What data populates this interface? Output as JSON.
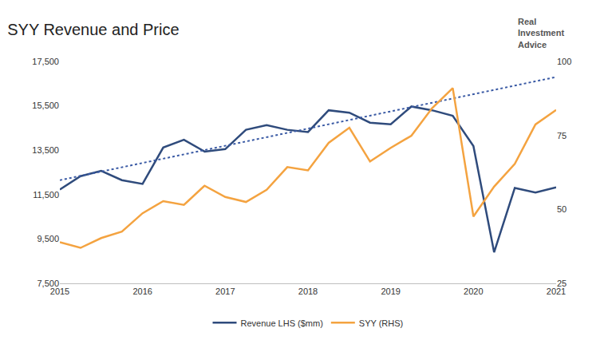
{
  "chart_data": {
    "type": "line",
    "title": "SYY Revenue and Price",
    "logo": [
      "Real",
      "Investment",
      "Advice"
    ],
    "x": [
      2015,
      2015.25,
      2015.5,
      2015.75,
      2016,
      2016.25,
      2016.5,
      2016.75,
      2017,
      2017.25,
      2017.5,
      2017.75,
      2018,
      2018.25,
      2018.5,
      2018.75,
      2019,
      2019.25,
      2019.5,
      2019.75,
      2020,
      2020.25,
      2020.5,
      2020.75,
      2021
    ],
    "series": [
      {
        "name": "Revenue LHS ($mm)",
        "color": "#2f4b7c",
        "axis": "y",
        "values": [
          11730,
          12330,
          12570,
          12150,
          11980,
          13620,
          13970,
          13440,
          13550,
          14420,
          14630,
          14420,
          14320,
          15300,
          15190,
          14740,
          14670,
          15470,
          15300,
          15050,
          13690,
          8900,
          11800,
          11590,
          11830
        ]
      },
      {
        "name": "SYY (RHS)",
        "color": "#f4a340",
        "axis": "y2",
        "values": [
          38.9,
          37.0,
          40.3,
          42.5,
          48.7,
          52.8,
          51.5,
          58.0,
          54.2,
          52.5,
          56.6,
          64.3,
          63.2,
          72.5,
          77.6,
          66.2,
          70.8,
          74.9,
          84.2,
          91.0,
          47.6,
          57.7,
          65.4,
          78.7,
          83.6
        ]
      },
      {
        "color": "#3b5ba5",
        "axis": "y",
        "line_style": "dot",
        "x": [
          2015,
          2021
        ],
        "values": [
          12150,
          16800
        ]
      }
    ],
    "xlim": [
      2015,
      2021
    ],
    "xticks": [
      2015,
      2016,
      2017,
      2018,
      2019,
      2020,
      2021
    ],
    "ylim": [
      7500,
      17500
    ],
    "yticks": [
      {
        "value": 7500,
        "label": "7,500"
      },
      {
        "value": 9500,
        "label": "9,500"
      },
      {
        "value": 11500,
        "label": "11,500"
      },
      {
        "value": 13500,
        "label": "13,500"
      },
      {
        "value": 15500,
        "label": "15,500"
      },
      {
        "value": 17500,
        "label": "17,500"
      }
    ],
    "y2lim": [
      25,
      100
    ],
    "y2ticks": [
      25,
      50,
      75,
      100
    ],
    "grid": false,
    "legend": "bottom"
  }
}
